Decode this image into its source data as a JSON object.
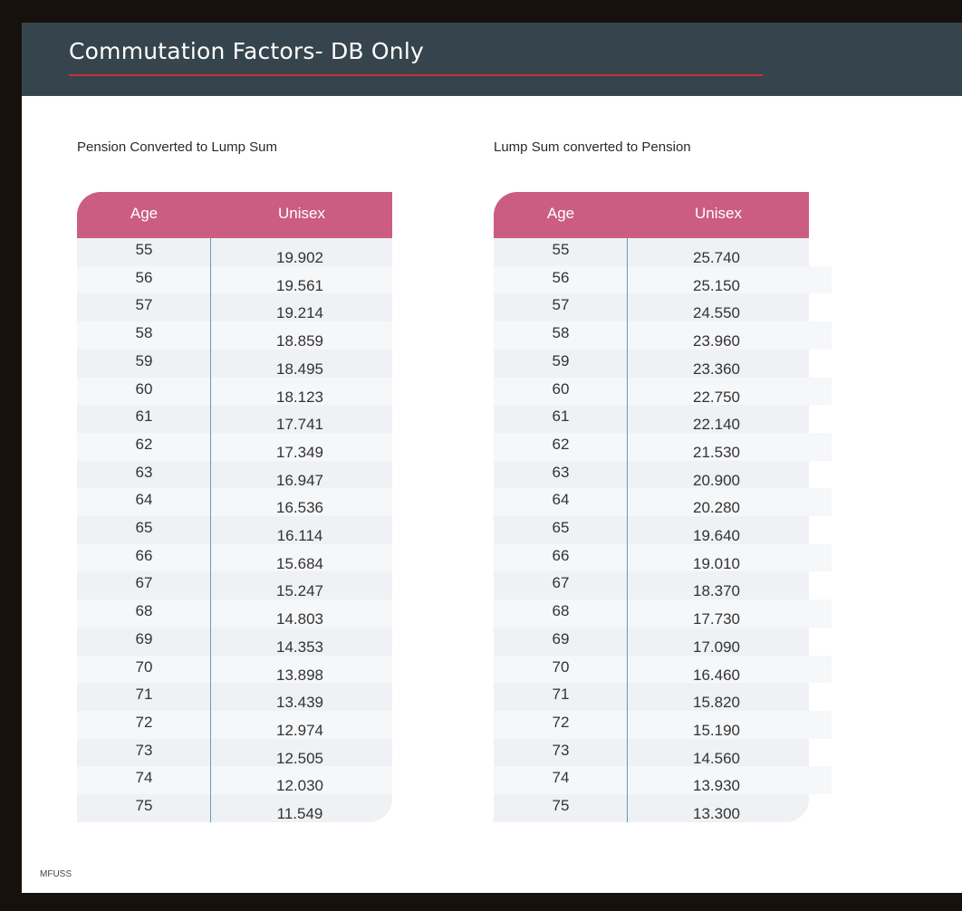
{
  "header": {
    "title": "Commutation Factors- DB Only"
  },
  "tables": [
    {
      "title": "Pension Converted to Lump Sum",
      "columns": [
        "Age",
        "Unisex"
      ],
      "rows": [
        [
          "55",
          "19.902"
        ],
        [
          "56",
          "19.561"
        ],
        [
          "57",
          "19.214"
        ],
        [
          "58",
          "18.859"
        ],
        [
          "59",
          "18.495"
        ],
        [
          "60",
          "18.123"
        ],
        [
          "61",
          "17.741"
        ],
        [
          "62",
          "17.349"
        ],
        [
          "63",
          "16.947"
        ],
        [
          "64",
          "16.536"
        ],
        [
          "65",
          "16.114"
        ],
        [
          "66",
          "15.684"
        ],
        [
          "67",
          "15.247"
        ],
        [
          "68",
          "14.803"
        ],
        [
          "69",
          "14.353"
        ],
        [
          "70",
          "13.898"
        ],
        [
          "71",
          "13.439"
        ],
        [
          "72",
          "12.974"
        ],
        [
          "73",
          "12.505"
        ],
        [
          "74",
          "12.030"
        ],
        [
          "75",
          "11.549"
        ]
      ]
    },
    {
      "title": "Lump Sum converted to Pension",
      "columns": [
        "Age",
        "Unisex"
      ],
      "rows": [
        [
          "55",
          "25.740"
        ],
        [
          "56",
          "25.150"
        ],
        [
          "57",
          "24.550"
        ],
        [
          "58",
          "23.960"
        ],
        [
          "59",
          "23.360"
        ],
        [
          "60",
          "22.750"
        ],
        [
          "61",
          "22.140"
        ],
        [
          "62",
          "21.530"
        ],
        [
          "63",
          "20.900"
        ],
        [
          "64",
          "20.280"
        ],
        [
          "65",
          "19.640"
        ],
        [
          "66",
          "19.010"
        ],
        [
          "67",
          "18.370"
        ],
        [
          "68",
          "17.730"
        ],
        [
          "69",
          "17.090"
        ],
        [
          "70",
          "16.460"
        ],
        [
          "71",
          "15.820"
        ],
        [
          "72",
          "15.190"
        ],
        [
          "73",
          "14.560"
        ],
        [
          "74",
          "13.930"
        ],
        [
          "75",
          "13.300"
        ]
      ]
    }
  ],
  "footer": {
    "label": "MFUSS"
  },
  "colors": {
    "header_bg": "#36454d",
    "header_rule": "#c4303b",
    "table_head": "#cb5d82",
    "column_divider": "#5f9cc0"
  }
}
